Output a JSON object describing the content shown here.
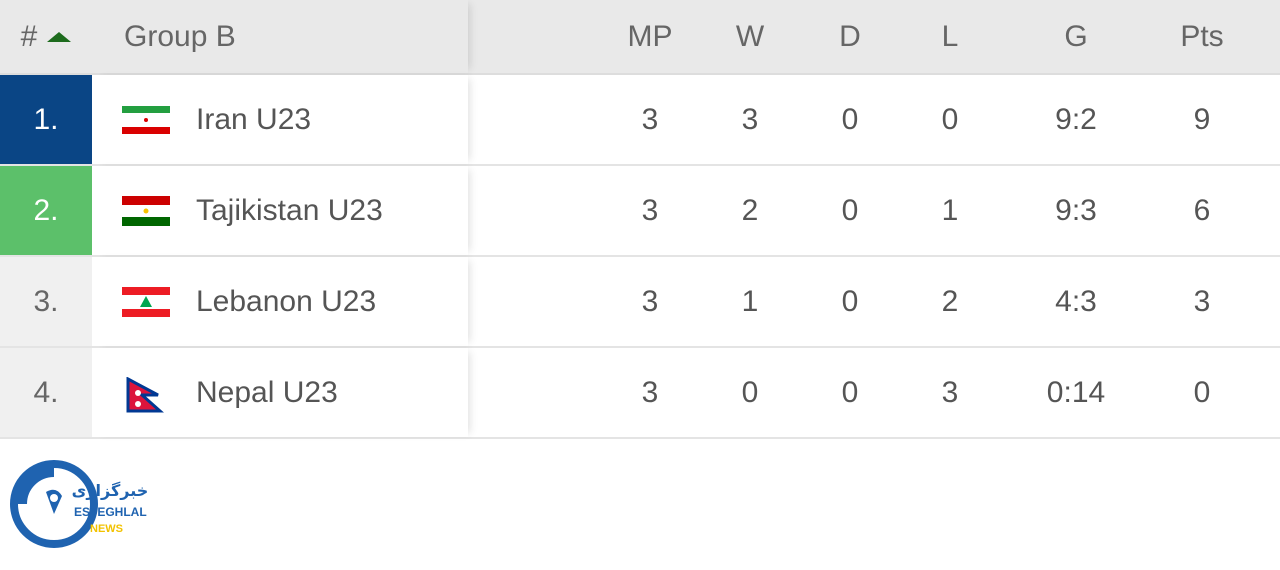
{
  "header": {
    "rank": "#",
    "sort_icon": "triangle-up-icon",
    "group": "Group B",
    "cols": [
      "MP",
      "W",
      "D",
      "L",
      "G",
      "Pts"
    ]
  },
  "rows": [
    {
      "rank": "1.",
      "team": "Iran U23",
      "flag": "iran-flag",
      "rank_color": "#0a4585",
      "mp": "3",
      "w": "3",
      "d": "0",
      "l": "0",
      "g": "9:2",
      "pts": "9"
    },
    {
      "rank": "2.",
      "team": "Tajikistan U23",
      "flag": "tajikistan-flag",
      "rank_color": "#5cc06a",
      "mp": "3",
      "w": "2",
      "d": "0",
      "l": "1",
      "g": "9:3",
      "pts": "6"
    },
    {
      "rank": "3.",
      "team": "Lebanon U23",
      "flag": "lebanon-flag",
      "rank_color": "#f0f0f0",
      "mp": "3",
      "w": "1",
      "d": "0",
      "l": "2",
      "g": "4:3",
      "pts": "3"
    },
    {
      "rank": "4.",
      "team": "Nepal U23",
      "flag": "nepal-flag",
      "rank_color": "#f0f0f0",
      "mp": "3",
      "w": "0",
      "d": "0",
      "l": "3",
      "g": "0:14",
      "pts": "0"
    }
  ],
  "logo": {
    "persian": "خبرگزاری",
    "name": "ESTEGHLAL",
    "sub": "NEWS"
  }
}
